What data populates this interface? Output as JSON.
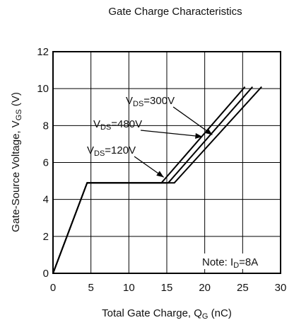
{
  "chart_data": {
    "type": "line",
    "title": "Gate Charge Characteristics",
    "xlabel": {
      "main": "Total Gate Charge, Q",
      "sub": "G",
      "unit": " (nC)"
    },
    "ylabel": {
      "main": "Gate-Source Voltage, V",
      "sub": "GS",
      "unit": " (V)"
    },
    "xlim": [
      0,
      30
    ],
    "ylim": [
      0,
      12
    ],
    "xticks": [
      0,
      5,
      10,
      15,
      20,
      25,
      30
    ],
    "yticks": [
      0,
      2,
      4,
      6,
      8,
      10,
      12
    ],
    "grid": true,
    "note": {
      "pre": "Note: I",
      "sub": "D",
      "post": "=8A"
    },
    "series": [
      {
        "label": {
          "pre": "V",
          "sub": "DS",
          "post": "=120V"
        },
        "points": [
          [
            0,
            0
          ],
          [
            4.5,
            4.9
          ],
          [
            14.3,
            4.9
          ],
          [
            25.3,
            10.1
          ]
        ],
        "arrow_target": [
          14.6,
          5.2
        ]
      },
      {
        "label": {
          "pre": "V",
          "sub": "DS",
          "post": "=480V"
        },
        "points": [
          [
            0,
            0
          ],
          [
            4.5,
            4.9
          ],
          [
            15.2,
            4.9
          ],
          [
            26.3,
            10.1
          ]
        ],
        "arrow_target": [
          19.7,
          7.4
        ]
      },
      {
        "label": {
          "pre": "V",
          "sub": "DS",
          "post": "=300V"
        },
        "points": [
          [
            0,
            0
          ],
          [
            4.5,
            4.9
          ],
          [
            16.0,
            4.9
          ],
          [
            27.5,
            10.1
          ]
        ],
        "arrow_target": [
          21.0,
          7.5
        ]
      }
    ]
  }
}
